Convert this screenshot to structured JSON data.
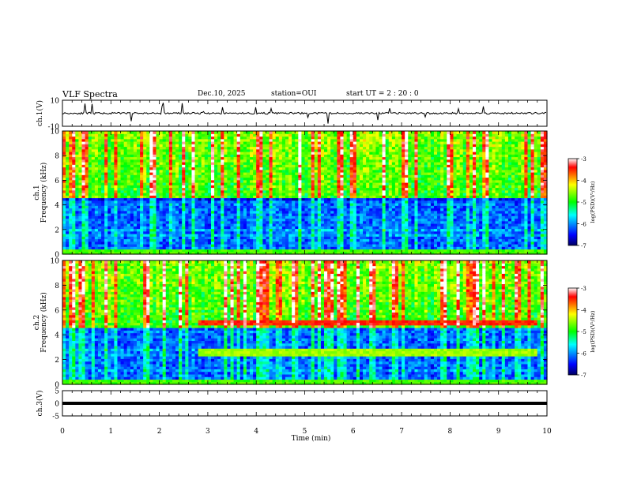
{
  "header": {
    "title": "VLF Spectra",
    "date": "Dec.10, 2025",
    "station": "station=OUI",
    "start_ut": "start UT =  2 : 20 : 0"
  },
  "colors": {
    "colormap": [
      "#000060",
      "#0000ff",
      "#00ffff",
      "#00ff00",
      "#ffff00",
      "#ff0000",
      "#ffffff"
    ]
  },
  "chart_data": [
    {
      "type": "line",
      "title": "ch.1(V)",
      "ylabel": "ch.1(V)",
      "ylim": [
        -10,
        10
      ],
      "yticks": [
        "10",
        "-10"
      ],
      "baseline": 0,
      "xlim": [
        0,
        10
      ]
    },
    {
      "type": "heatmap",
      "ylabel": "ch.1 Frequency (kHz)",
      "xlim": [
        0,
        10
      ],
      "ylim": [
        0,
        10
      ],
      "yticks": [
        "0",
        "2",
        "4",
        "6",
        "8",
        "10"
      ],
      "colorbar": {
        "label": "log(PSD)(V²/Hz)",
        "range": [
          -7,
          -3
        ],
        "ticks": [
          "-3",
          "-4",
          "-5",
          "-6",
          "-7"
        ]
      },
      "features": [
        {
          "name": "high-band activity",
          "freq_range_khz": [
            4.5,
            10
          ],
          "level": -4
        },
        {
          "name": "low-band background",
          "freq_range_khz": [
            0,
            4.5
          ],
          "level": -6
        }
      ]
    },
    {
      "type": "heatmap",
      "ylabel": "ch.2 Frequency (kHz)",
      "xlim": [
        0,
        10
      ],
      "ylim": [
        0,
        10
      ],
      "yticks": [
        "0",
        "2",
        "4",
        "6",
        "8",
        "10"
      ],
      "colorbar": {
        "label": "log(PSD)(V²/Hz)",
        "range": [
          -7,
          -3
        ],
        "ticks": [
          "-3",
          "-4",
          "-5",
          "-6",
          "-7"
        ]
      },
      "features": [
        {
          "name": "emission band",
          "freq_khz": 5.0,
          "time_range_min": [
            2.8,
            9.8
          ],
          "level": -3.5
        },
        {
          "name": "emission band",
          "freq_khz": 2.6,
          "time_range_min": [
            2.8,
            9.8
          ],
          "level": -4.5
        }
      ]
    },
    {
      "type": "line",
      "title": "ch.3(V)",
      "ylabel": "ch.3(V)",
      "ylim": [
        -5,
        5
      ],
      "yticks": [
        "5",
        "0",
        "-5"
      ],
      "baseline": 0,
      "xlim": [
        0,
        10
      ]
    }
  ],
  "x_axis": {
    "label": "Time (min)",
    "ticks": [
      "0",
      "1",
      "2",
      "3",
      "4",
      "5",
      "6",
      "7",
      "8",
      "9",
      "10"
    ],
    "range": [
      0,
      10
    ]
  }
}
